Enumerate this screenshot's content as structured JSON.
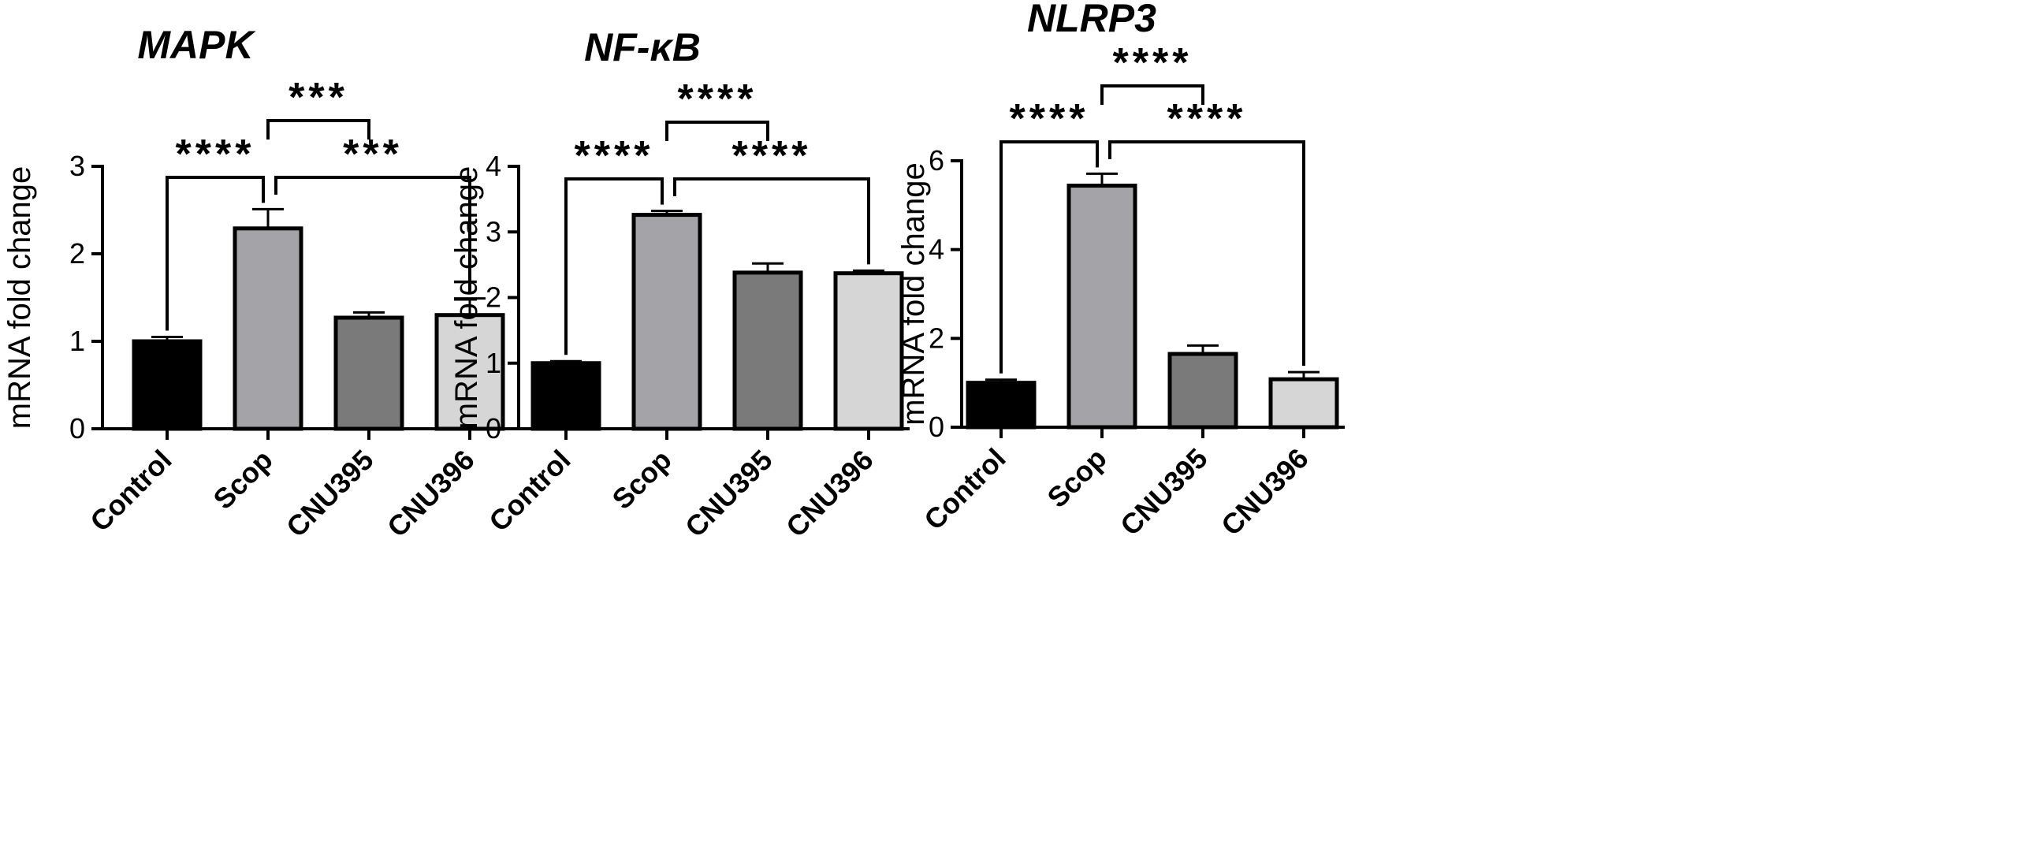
{
  "chart_data": [
    {
      "type": "bar",
      "title": "MAPK",
      "ylabel": "mRNA fold change",
      "categories": [
        "Control",
        "Scop",
        "CNU395",
        "CNU396"
      ],
      "values": [
        1.0,
        2.29,
        1.27,
        1.3
      ],
      "errors": [
        0.05,
        0.22,
        0.06,
        0.19
      ],
      "ylim": [
        0,
        3
      ],
      "yticks": [
        "0",
        "1",
        "2",
        "3"
      ],
      "bar_colors": [
        "#000000",
        "#a3a3a8",
        "#7a7a7a",
        "#d6d6d6"
      ],
      "significance": [
        {
          "from": 1,
          "to": 2,
          "label": "***"
        },
        {
          "from": 0,
          "to": 1,
          "label": "****"
        },
        {
          "from": 1,
          "to": 3,
          "label": "***"
        }
      ]
    },
    {
      "type": "bar",
      "title": "NF-κB",
      "ylabel": "mRNA fold change",
      "categories": [
        "Control",
        "Scop",
        "CNU395",
        "CNU396"
      ],
      "values": [
        1.0,
        3.26,
        2.38,
        2.37
      ],
      "errors": [
        0.03,
        0.06,
        0.14,
        0.04
      ],
      "ylim": [
        0,
        4
      ],
      "yticks": [
        "0",
        "1",
        "2",
        "3",
        "4"
      ],
      "bar_colors": [
        "#000000",
        "#a3a3a8",
        "#7a7a7a",
        "#d6d6d6"
      ],
      "significance": [
        {
          "from": 1,
          "to": 2,
          "label": "****"
        },
        {
          "from": 0,
          "to": 1,
          "label": "****"
        },
        {
          "from": 1,
          "to": 3,
          "label": "****"
        }
      ]
    },
    {
      "type": "bar",
      "title": "NLRP3",
      "ylabel": "mRNA fold change",
      "categories": [
        "Control",
        "Scop",
        "CNU395",
        "CNU396"
      ],
      "values": [
        1.0,
        5.44,
        1.65,
        1.08
      ],
      "errors": [
        0.07,
        0.27,
        0.19,
        0.16
      ],
      "ylim": [
        0,
        6
      ],
      "yticks": [
        "0",
        "2",
        "4",
        "6"
      ],
      "bar_colors": [
        "#000000",
        "#a3a3a8",
        "#7a7a7a",
        "#d6d6d6"
      ],
      "significance": [
        {
          "from": 1,
          "to": 2,
          "label": "****"
        },
        {
          "from": 0,
          "to": 1,
          "label": "****"
        },
        {
          "from": 1,
          "to": 3,
          "label": "****"
        }
      ]
    }
  ]
}
